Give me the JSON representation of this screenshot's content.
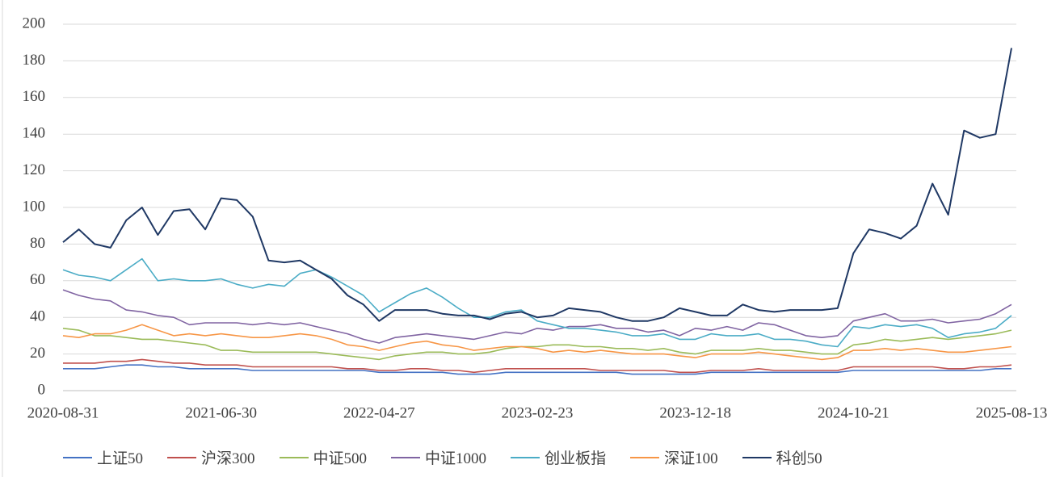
{
  "chart_data": {
    "type": "line",
    "categories": [
      "2020-08-31",
      null,
      null,
      null,
      null,
      null,
      null,
      null,
      null,
      null,
      "2021-06-30",
      null,
      null,
      null,
      null,
      null,
      null,
      null,
      null,
      null,
      "2022-04-27",
      null,
      null,
      null,
      null,
      null,
      null,
      null,
      null,
      null,
      "2023-02-23",
      null,
      null,
      null,
      null,
      null,
      null,
      null,
      null,
      null,
      "2023-12-18",
      null,
      null,
      null,
      null,
      null,
      null,
      null,
      null,
      null,
      "2024-10-21",
      null,
      null,
      null,
      null,
      null,
      null,
      null,
      null,
      null,
      "2025-08-13"
    ],
    "series": [
      {
        "name": "上证50",
        "color": "#4472c4",
        "values": [
          12,
          12,
          12,
          13,
          14,
          14,
          13,
          13,
          12,
          12,
          12,
          12,
          11,
          11,
          11,
          11,
          11,
          11,
          11,
          11,
          10,
          10,
          10,
          10,
          10,
          9,
          9,
          9,
          10,
          10,
          10,
          10,
          10,
          10,
          10,
          10,
          9,
          9,
          9,
          9,
          9,
          10,
          10,
          10,
          10,
          10,
          10,
          10,
          10,
          10,
          11,
          11,
          11,
          11,
          11,
          11,
          11,
          11,
          11,
          12,
          12
        ]
      },
      {
        "name": "沪深300",
        "color": "#c0504d",
        "values": [
          15,
          15,
          15,
          16,
          16,
          17,
          16,
          15,
          15,
          14,
          14,
          14,
          13,
          13,
          13,
          13,
          13,
          13,
          12,
          12,
          11,
          11,
          12,
          12,
          11,
          11,
          10,
          11,
          12,
          12,
          12,
          12,
          12,
          12,
          11,
          11,
          11,
          11,
          11,
          10,
          10,
          11,
          11,
          11,
          12,
          11,
          11,
          11,
          11,
          11,
          13,
          13,
          13,
          13,
          13,
          13,
          12,
          12,
          13,
          13,
          14
        ]
      },
      {
        "name": "中证500",
        "color": "#9bbb59",
        "values": [
          34,
          33,
          30,
          30,
          29,
          28,
          28,
          27,
          26,
          25,
          22,
          22,
          21,
          21,
          21,
          21,
          21,
          20,
          19,
          18,
          17,
          19,
          20,
          21,
          21,
          20,
          20,
          21,
          23,
          24,
          24,
          25,
          25,
          24,
          24,
          23,
          23,
          22,
          23,
          21,
          20,
          22,
          22,
          22,
          23,
          22,
          22,
          21,
          20,
          20,
          25,
          26,
          28,
          27,
          28,
          29,
          28,
          29,
          30,
          31,
          33
        ]
      },
      {
        "name": "中证1000",
        "color": "#8064a2",
        "values": [
          55,
          52,
          50,
          49,
          44,
          43,
          41,
          40,
          36,
          37,
          37,
          37,
          36,
          37,
          36,
          37,
          35,
          33,
          31,
          28,
          26,
          29,
          30,
          31,
          30,
          29,
          28,
          30,
          32,
          31,
          34,
          33,
          35,
          35,
          36,
          34,
          34,
          32,
          33,
          30,
          34,
          33,
          35,
          33,
          37,
          36,
          33,
          30,
          29,
          30,
          38,
          40,
          42,
          38,
          38,
          39,
          37,
          38,
          39,
          42,
          47
        ]
      },
      {
        "name": "创业板指",
        "color": "#4bacc6",
        "values": [
          66,
          63,
          62,
          60,
          66,
          72,
          60,
          61,
          60,
          60,
          61,
          58,
          56,
          58,
          57,
          64,
          66,
          62,
          57,
          52,
          43,
          48,
          53,
          56,
          51,
          45,
          40,
          40,
          43,
          44,
          38,
          36,
          34,
          34,
          33,
          32,
          30,
          30,
          31,
          28,
          28,
          31,
          30,
          30,
          31,
          28,
          28,
          27,
          25,
          24,
          35,
          34,
          36,
          35,
          36,
          34,
          29,
          31,
          32,
          34,
          41
        ]
      },
      {
        "name": "深证100",
        "color": "#f79646",
        "values": [
          30,
          29,
          31,
          31,
          33,
          36,
          33,
          30,
          31,
          30,
          31,
          30,
          29,
          29,
          30,
          31,
          30,
          28,
          25,
          24,
          22,
          24,
          26,
          27,
          25,
          24,
          22,
          23,
          24,
          24,
          23,
          21,
          22,
          21,
          22,
          21,
          20,
          20,
          20,
          19,
          18,
          20,
          20,
          20,
          21,
          20,
          19,
          18,
          17,
          18,
          22,
          22,
          23,
          22,
          23,
          22,
          21,
          21,
          22,
          23,
          24
        ]
      },
      {
        "name": "科创50",
        "color": "#1f3864",
        "values": [
          81,
          88,
          80,
          78,
          93,
          100,
          85,
          98,
          99,
          88,
          105,
          104,
          95,
          71,
          70,
          71,
          66,
          61,
          52,
          47,
          38,
          44,
          44,
          44,
          42,
          41,
          41,
          39,
          42,
          43,
          40,
          41,
          45,
          44,
          43,
          40,
          38,
          38,
          40,
          45,
          43,
          41,
          41,
          47,
          44,
          43,
          44,
          44,
          44,
          45,
          75,
          88,
          86,
          83,
          90,
          113,
          96,
          142,
          138,
          140,
          187
        ]
      }
    ],
    "ylim": [
      0,
      200
    ],
    "yticks": [
      0,
      20,
      40,
      60,
      80,
      100,
      120,
      140,
      160,
      180,
      200
    ],
    "grid": true
  }
}
